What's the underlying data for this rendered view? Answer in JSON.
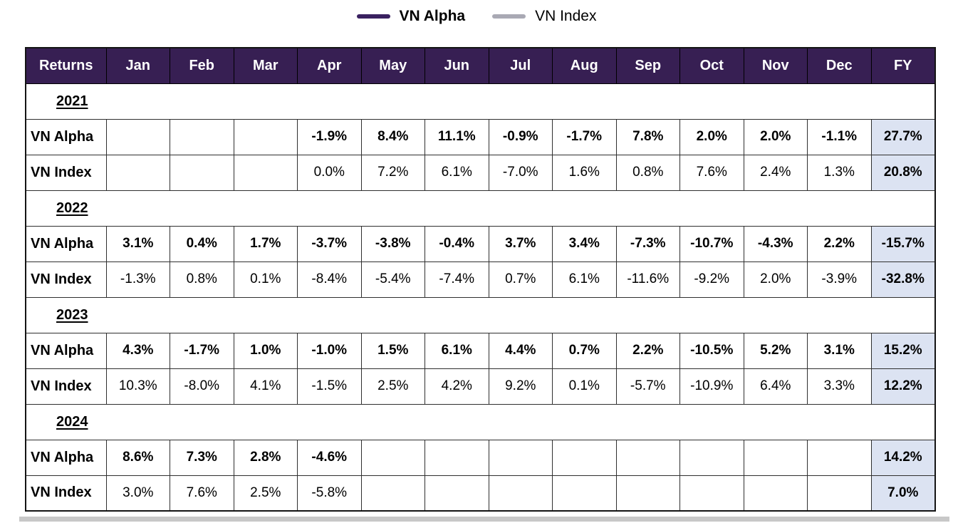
{
  "legend": {
    "alpha_label": "VN Alpha",
    "index_label": "VN Index"
  },
  "colors": {
    "alpha_line": "#3a2160",
    "index_line": "#a9a9b4",
    "header_bg": "#371f53",
    "fy_bg": "#dce3f2",
    "bottom_bar": "#c8c8c8"
  },
  "chart_data": {
    "type": "table",
    "legend": [
      "VN Alpha",
      "VN Index"
    ],
    "columns": [
      "Returns",
      "Jan",
      "Feb",
      "Mar",
      "Apr",
      "May",
      "Jun",
      "Jul",
      "Aug",
      "Sep",
      "Oct",
      "Nov",
      "Dec",
      "FY"
    ],
    "sections": [
      {
        "year": "2021",
        "rows": [
          {
            "label": "VN Alpha",
            "values": [
              "",
              "",
              "",
              "-1.9%",
              "8.4%",
              "11.1%",
              "-0.9%",
              "-1.7%",
              "7.8%",
              "2.0%",
              "2.0%",
              "-1.1%"
            ],
            "fy": "27.7%"
          },
          {
            "label": "VN Index",
            "values": [
              "",
              "",
              "",
              "0.0%",
              "7.2%",
              "6.1%",
              "-7.0%",
              "1.6%",
              "0.8%",
              "7.6%",
              "2.4%",
              "1.3%"
            ],
            "fy": "20.8%"
          }
        ]
      },
      {
        "year": "2022",
        "rows": [
          {
            "label": "VN Alpha",
            "values": [
              "3.1%",
              "0.4%",
              "1.7%",
              "-3.7%",
              "-3.8%",
              "-0.4%",
              "3.7%",
              "3.4%",
              "-7.3%",
              "-10.7%",
              "-4.3%",
              "2.2%"
            ],
            "fy": "-15.7%"
          },
          {
            "label": "VN Index",
            "values": [
              "-1.3%",
              "0.8%",
              "0.1%",
              "-8.4%",
              "-5.4%",
              "-7.4%",
              "0.7%",
              "6.1%",
              "-11.6%",
              "-9.2%",
              "2.0%",
              "-3.9%"
            ],
            "fy": "-32.8%"
          }
        ]
      },
      {
        "year": "2023",
        "rows": [
          {
            "label": "VN Alpha",
            "values": [
              "4.3%",
              "-1.7%",
              "1.0%",
              "-1.0%",
              "1.5%",
              "6.1%",
              "4.4%",
              "0.7%",
              "2.2%",
              "-10.5%",
              "5.2%",
              "3.1%"
            ],
            "fy": "15.2%"
          },
          {
            "label": "VN Index",
            "values": [
              "10.3%",
              "-8.0%",
              "4.1%",
              "-1.5%",
              "2.5%",
              "4.2%",
              "9.2%",
              "0.1%",
              "-5.7%",
              "-10.9%",
              "6.4%",
              "3.3%"
            ],
            "fy": "12.2%"
          }
        ]
      },
      {
        "year": "2024",
        "rows": [
          {
            "label": "VN Alpha",
            "values": [
              "8.6%",
              "7.3%",
              "2.8%",
              "-4.6%",
              "",
              "",
              "",
              "",
              "",
              "",
              "",
              ""
            ],
            "fy": "14.2%"
          },
          {
            "label": "VN Index",
            "values": [
              "3.0%",
              "7.6%",
              "2.5%",
              "-5.8%",
              "",
              "",
              "",
              "",
              "",
              "",
              "",
              ""
            ],
            "fy": "7.0%"
          }
        ]
      }
    ]
  }
}
